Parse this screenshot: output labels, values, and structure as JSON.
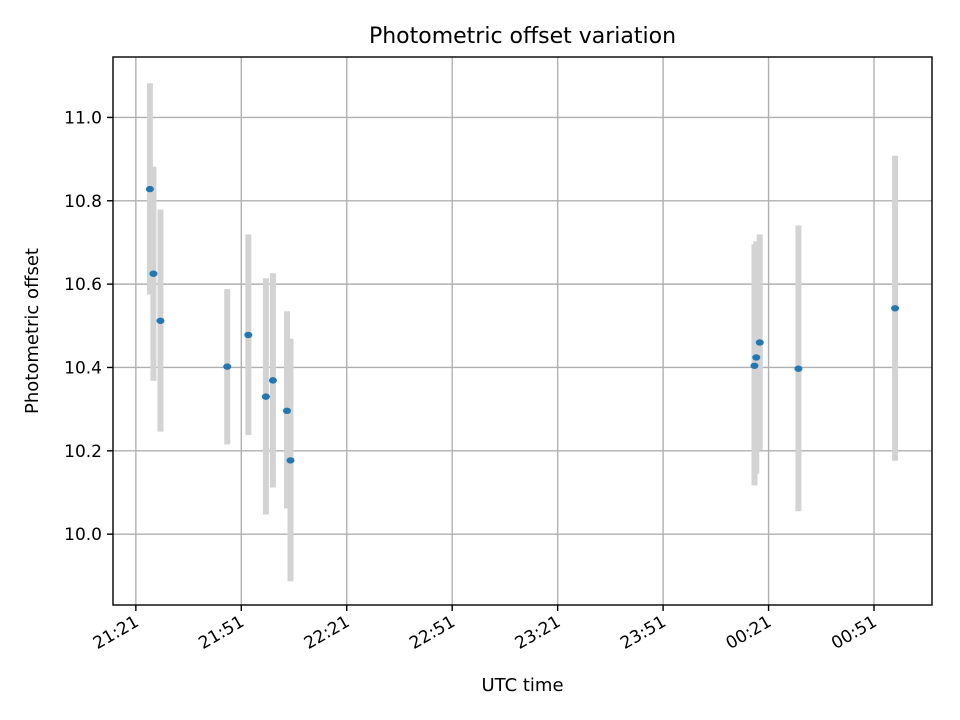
{
  "chart_data": {
    "type": "scatter",
    "title": "Photometric offset variation",
    "xlabel": "UTC time",
    "ylabel": "Photometric offset",
    "x_tick_labels": [
      "21:21",
      "21:51",
      "22:21",
      "22:51",
      "23:21",
      "23:51",
      "00:21",
      "00:51"
    ],
    "x_ticks_minutes": [
      0,
      30,
      60,
      90,
      120,
      150,
      180,
      210
    ],
    "xlim_minutes": [
      -6.5,
      226.5
    ],
    "y_ticks": [
      10.0,
      10.2,
      10.4,
      10.6,
      10.8,
      11.0
    ],
    "ylim": [
      9.83,
      11.145
    ],
    "grid": true,
    "colors": {
      "marker": "#1f77b4",
      "errorbar": "#d3d3d3"
    },
    "points": [
      {
        "t": "21:25:00",
        "y": 10.828,
        "lo": 10.575,
        "hi": 11.082
      },
      {
        "t": "21:26:00",
        "y": 10.625,
        "lo": 10.368,
        "hi": 10.882
      },
      {
        "t": "21:28:00",
        "y": 10.512,
        "lo": 10.246,
        "hi": 10.779
      },
      {
        "t": "21:47:00",
        "y": 10.402,
        "lo": 10.215,
        "hi": 10.588
      },
      {
        "t": "21:53:00",
        "y": 10.478,
        "lo": 10.238,
        "hi": 10.719
      },
      {
        "t": "21:58:00",
        "y": 10.33,
        "lo": 10.047,
        "hi": 10.614
      },
      {
        "t": "22:00:00",
        "y": 10.369,
        "lo": 10.112,
        "hi": 10.626
      },
      {
        "t": "22:04:00",
        "y": 10.296,
        "lo": 10.062,
        "hi": 10.535
      },
      {
        "t": "22:05:00",
        "y": 10.177,
        "lo": 9.887,
        "hi": 10.469
      },
      {
        "t": "00:17:00",
        "y": 10.404,
        "lo": 10.117,
        "hi": 10.695
      },
      {
        "t": "00:17:30",
        "y": 10.424,
        "lo": 10.145,
        "hi": 10.703
      },
      {
        "t": "00:18:30",
        "y": 10.46,
        "lo": 10.202,
        "hi": 10.719
      },
      {
        "t": "00:29:30",
        "y": 10.397,
        "lo": 10.055,
        "hi": 10.741
      },
      {
        "t": "00:57:00",
        "y": 10.542,
        "lo": 10.176,
        "hi": 10.908
      }
    ]
  }
}
